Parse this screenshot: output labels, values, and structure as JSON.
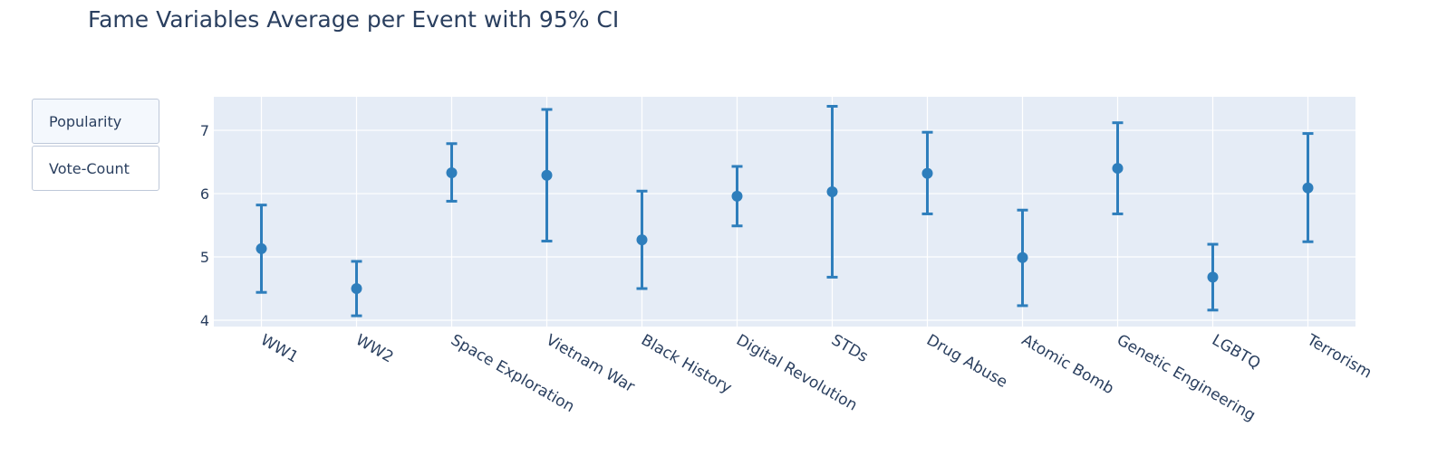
{
  "title": "Fame Variables Average per Event with 95% CI",
  "buttons": [
    {
      "label": "Popularity",
      "active": true
    },
    {
      "label": "Vote-Count",
      "active": false
    }
  ],
  "chart_data": {
    "type": "scatter",
    "title": "Fame Variables Average per Event with 95% CI",
    "xlabel": "",
    "ylabel": "",
    "categories": [
      "WW1",
      "WW2",
      "Space Exploration",
      "Vietnam War",
      "Black History",
      "Digital Revolution",
      "STDs",
      "Drug Abuse",
      "Atomic Bomb",
      "Genetic Engineering",
      "LGBTQ",
      "Terrorism"
    ],
    "series": [
      {
        "values": [
          5.13,
          4.5,
          6.33,
          6.29,
          5.27,
          5.96,
          6.03,
          6.32,
          4.99,
          6.4,
          4.68,
          6.09
        ],
        "ci_low": [
          4.44,
          4.07,
          5.88,
          5.25,
          4.5,
          5.49,
          4.68,
          5.68,
          4.23,
          5.68,
          4.16,
          5.24
        ],
        "ci_high": [
          5.82,
          4.93,
          6.79,
          7.33,
          6.04,
          6.43,
          7.38,
          6.97,
          5.74,
          7.12,
          5.2,
          6.95
        ],
        "color": "#2e7ebc"
      }
    ],
    "ylim": [
      3.9,
      7.53
    ],
    "yticks": [
      4,
      5,
      6,
      7
    ],
    "grid": true,
    "plot_bg": "#e5ecf6",
    "grid_color": "#ffffff"
  }
}
